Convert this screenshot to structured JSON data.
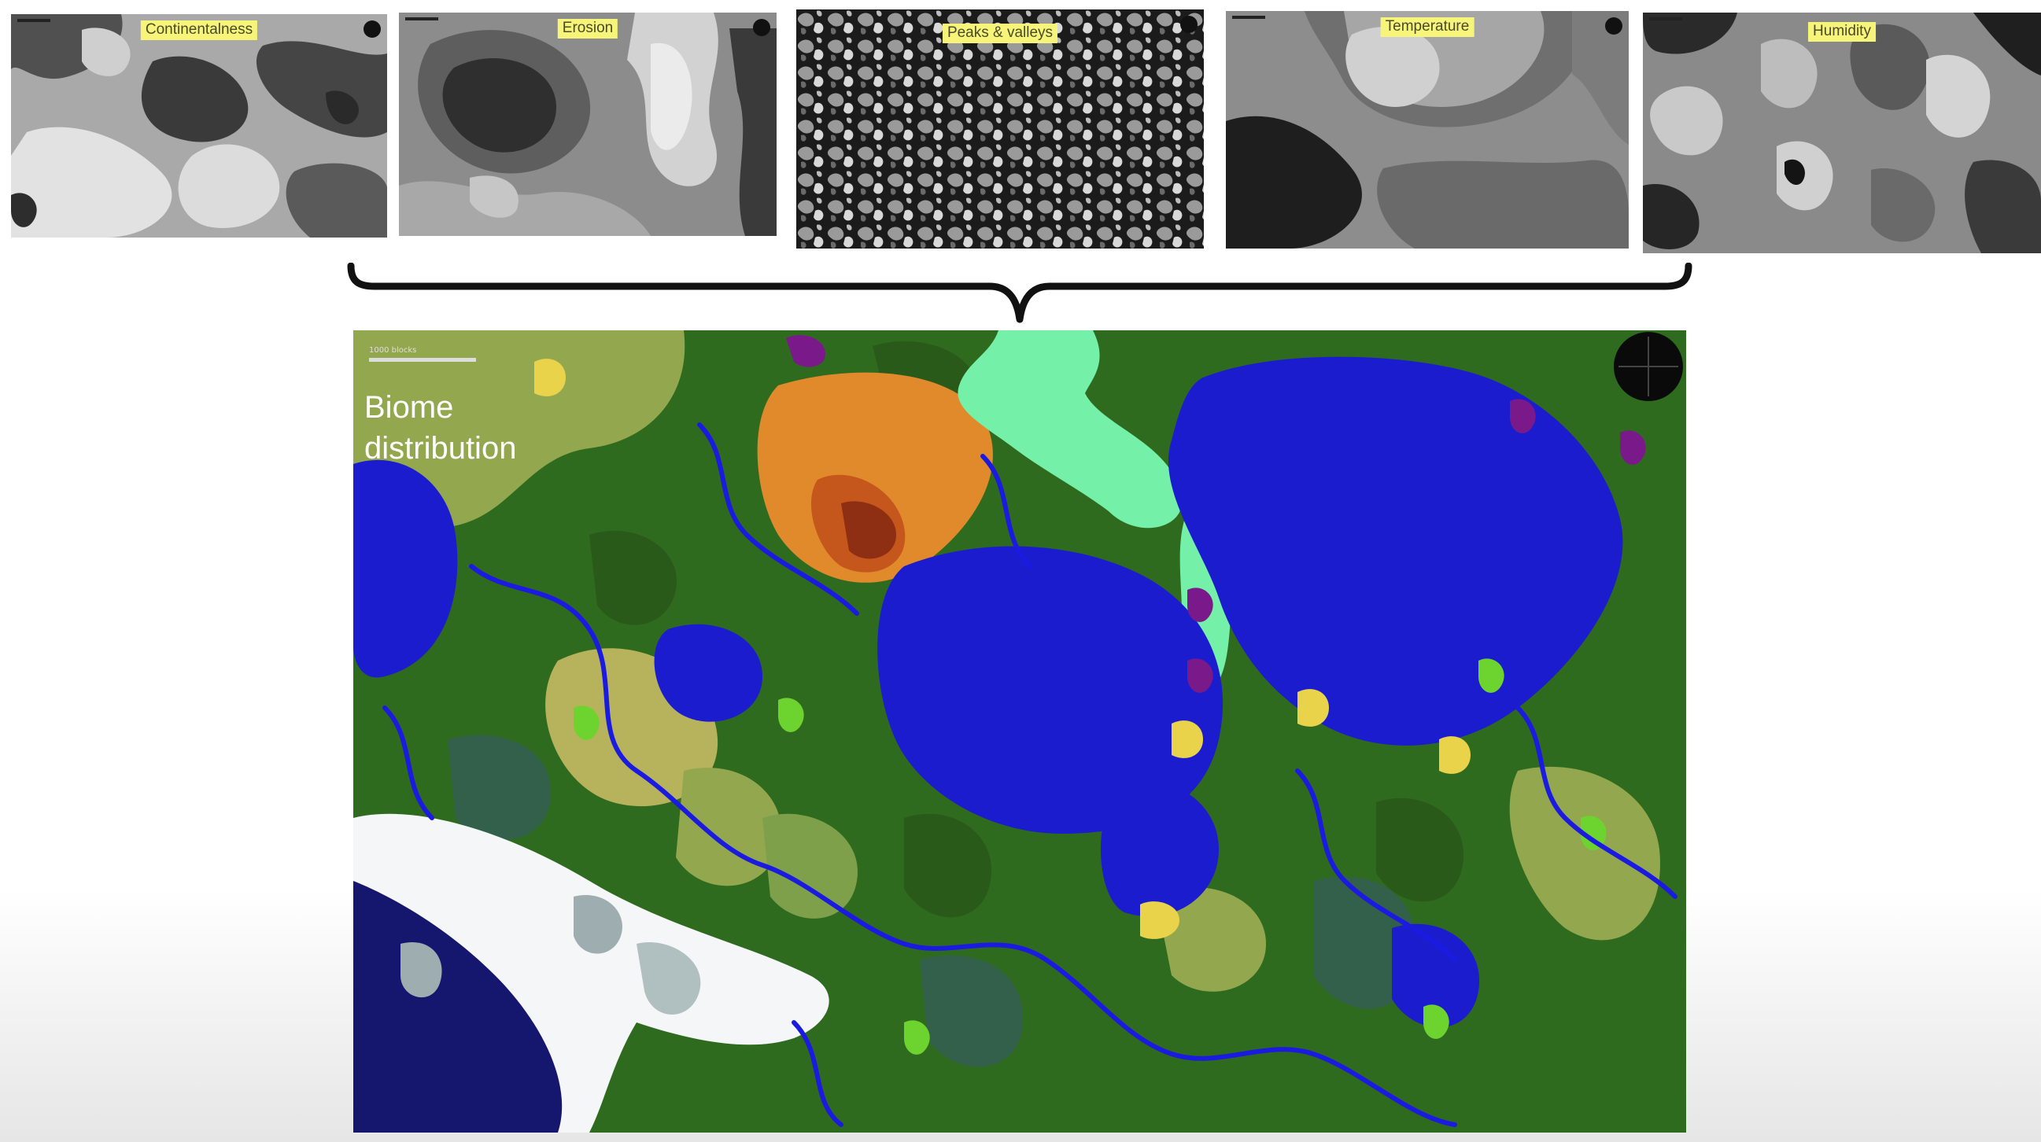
{
  "noise_maps": [
    {
      "label": "Continentalness"
    },
    {
      "label": "Erosion"
    },
    {
      "label": "Peaks & valleys"
    },
    {
      "label": "Temperature"
    },
    {
      "label": "Humidity"
    }
  ],
  "biome_map": {
    "title": "Biome distribution",
    "scale_label": "1000 blocks"
  },
  "colors": {
    "ocean": "#1c1ccf",
    "river": "#1a1ae0",
    "forest": "#2f6b1f",
    "plains": "#93a84e",
    "savanna": "#b7b35c",
    "desert": "#e08a2c",
    "badlands": "#b0451a",
    "meadow": "#74f0a8",
    "snowy": "#f4f6f8",
    "jungle": "#6dd42f",
    "beach": "#e9d34b",
    "deep_ocean": "#15166e",
    "mushroom": "#7a1a8a"
  }
}
